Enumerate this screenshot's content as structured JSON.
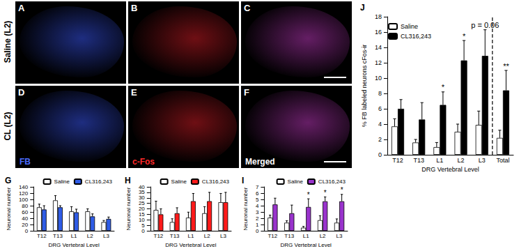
{
  "image_panels": {
    "rows": [
      {
        "label": "Saline (L2)",
        "panels": [
          "A",
          "B",
          "C"
        ]
      },
      {
        "label": "CL (L2)",
        "panels": [
          "D",
          "E",
          "F"
        ]
      }
    ],
    "channels": [
      {
        "label": "FB",
        "color": "#4a6bff"
      },
      {
        "label": "c-Fos",
        "color": "#ff2a2a"
      },
      {
        "label": "Merged",
        "color": "#ffffff"
      }
    ]
  },
  "chart_data": [
    {
      "type": "bar",
      "title": "G",
      "x_label": "DRG Vertebral Level",
      "y_label": "Neuronal number",
      "categories": [
        "T12",
        "T13",
        "L1",
        "L2",
        "L3"
      ],
      "series": [
        {
          "name": "Saline",
          "color": "#ffffff",
          "values": [
            75,
            97,
            62,
            62,
            28
          ],
          "errors": [
            10,
            15,
            15,
            8,
            5
          ]
        },
        {
          "name": "CL316,243",
          "color": "#2f5ce6",
          "values": [
            68,
            75,
            59,
            46,
            38
          ],
          "errors": [
            12,
            5,
            10,
            8,
            6
          ]
        }
      ],
      "ylim": [
        0,
        140
      ],
      "yticks": [
        0,
        20,
        40,
        60,
        80,
        100,
        120,
        140
      ],
      "legend": "top",
      "grid": false
    },
    {
      "type": "bar",
      "title": "H",
      "x_label": "DRG Vertebral Level",
      "y_label": "Neuronal number",
      "categories": [
        "T12",
        "T13",
        "L1",
        "L2",
        "L3"
      ],
      "series": [
        {
          "name": "Saline",
          "color": "#ffffff",
          "values": [
            19,
            8,
            12,
            16,
            26
          ],
          "errors": [
            8,
            3,
            5,
            6,
            8
          ]
        },
        {
          "name": "CL316,243",
          "color": "#ff1a1a",
          "values": [
            15,
            16,
            27,
            27,
            26
          ],
          "errors": [
            5,
            5,
            7,
            8,
            9
          ]
        }
      ],
      "ylim": [
        0,
        40
      ],
      "yticks": [
        0,
        5,
        10,
        15,
        20,
        25,
        30,
        35,
        40
      ],
      "legend": "top",
      "grid": false
    },
    {
      "type": "bar",
      "title": "I",
      "x_label": "DRG Vertebral Level",
      "y_label": "Neuronal number",
      "categories": [
        "T12",
        "T13",
        "L1",
        "L2",
        "L3"
      ],
      "series": [
        {
          "name": "Saline",
          "color": "#ffffff",
          "values": [
            2.1,
            1.3,
            0.5,
            1.7,
            1.3
          ],
          "errors": [
            0.4,
            0.3,
            0.2,
            0.7,
            0.6
          ]
        },
        {
          "name": "CL316,243",
          "color": "#9933cc",
          "values": [
            4.2,
            2.8,
            3.8,
            4.7,
            4.7
          ],
          "errors": [
            1.0,
            1.3,
            1.3,
            0.7,
            1.1
          ]
        }
      ],
      "annotations": [
        {
          "category": "L1",
          "text": "*"
        },
        {
          "category": "L2",
          "text": "*"
        },
        {
          "category": "L3",
          "text": "*"
        }
      ],
      "ylim": [
        0,
        7
      ],
      "yticks": [
        0,
        1,
        2,
        3,
        4,
        5,
        6,
        7
      ],
      "legend": "top",
      "grid": false
    },
    {
      "type": "bar",
      "title": "J",
      "x_label": "DRG Vertebral Level",
      "y_label": "% FB labeled neurons cFos-ir",
      "categories": [
        "T12",
        "T13",
        "L1",
        "L2",
        "L3",
        "Total"
      ],
      "series": [
        {
          "name": "Saline",
          "color": "#ffffff",
          "values": [
            3.7,
            1.6,
            1.0,
            3.0,
            3.9,
            2.2
          ],
          "errors": [
            1.0,
            0.4,
            0.6,
            1.0,
            1.8,
            1.0
          ]
        },
        {
          "name": "CL316,243",
          "color": "#000000",
          "values": [
            6.0,
            4.6,
            6.5,
            12.3,
            12.9,
            8.4
          ],
          "errors": [
            1.2,
            2.2,
            1.7,
            2.6,
            3.4,
            2.6
          ]
        }
      ],
      "annotations": [
        {
          "category": "L1",
          "text": "*"
        },
        {
          "category": "L2",
          "text": "*"
        },
        {
          "category": "L3",
          "text": "p = 0.06"
        },
        {
          "category": "Total",
          "text": "**"
        }
      ],
      "ylim": [
        0,
        18
      ],
      "yticks": [
        0,
        2,
        4,
        6,
        8,
        10,
        12,
        14,
        16,
        18
      ],
      "legend": "upper left",
      "grid": false
    }
  ]
}
